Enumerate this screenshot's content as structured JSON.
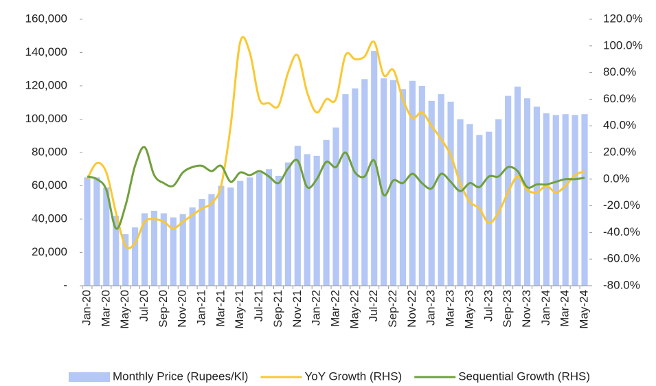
{
  "chart_data": {
    "type": "bar-line",
    "categories": [
      "Jan-20",
      null,
      "Mar-20",
      null,
      "May-20",
      null,
      "Jul-20",
      null,
      "Sep-20",
      null,
      "Nov-20",
      null,
      "Jan-21",
      null,
      "Mar-21",
      null,
      "May-21",
      null,
      "Jul-21",
      null,
      "Sep-21",
      null,
      "Nov-21",
      null,
      "Jan-22",
      null,
      "Mar-22",
      null,
      "May-22",
      null,
      "Jul-22",
      null,
      "Sep-22",
      null,
      "Nov-22",
      null,
      "Jan-23",
      null,
      "Mar-23",
      null,
      "May-23",
      null,
      "Jul-23",
      null,
      "Sep-23",
      null,
      "Nov-23",
      null,
      "Jan-24",
      null,
      "Mar-24",
      null,
      "May-24"
    ],
    "series": [
      {
        "name": "Monthly Price (Rupees/Kl)",
        "color": "#b4c7f5",
        "kind": "bar",
        "axis": "y",
        "values": [
          65000,
          65000,
          59000,
          42000,
          31000,
          35000,
          43500,
          45000,
          43500,
          41000,
          43000,
          47000,
          52000,
          55000,
          60000,
          59000,
          63000,
          65000,
          68000,
          70000,
          66000,
          74000,
          84000,
          79000,
          78000,
          87500,
          95000,
          115000,
          118500,
          124000,
          141000,
          124500,
          123500,
          118000,
          123000,
          120000,
          111000,
          115000,
          110500,
          100000,
          97000,
          90500,
          92500,
          100000,
          114000,
          119500,
          112500,
          107500,
          103500,
          102500,
          103000,
          102500,
          103000
        ]
      },
      {
        "name": "YoY Growth (RHS)",
        "color": "#fac832",
        "kind": "line",
        "axis": "y2",
        "values": [
          0,
          12,
          5,
          -25,
          -50,
          -48,
          -32,
          -30,
          -32,
          -37,
          -32,
          -27,
          -22,
          -18,
          -5,
          40,
          103,
          95,
          60,
          57,
          55,
          80,
          93,
          65,
          50,
          60,
          60,
          93,
          90,
          92,
          103,
          78,
          82,
          60,
          46,
          50,
          40,
          30,
          18,
          -3,
          -17,
          -22,
          -33,
          -25,
          -10,
          2,
          -8,
          -10,
          -5,
          -10,
          -5,
          3,
          6
        ]
      },
      {
        "name": "Sequential Growth (RHS)",
        "color": "#70a03c",
        "kind": "line",
        "axis": "y2",
        "values": [
          2,
          0,
          -8,
          -37,
          -20,
          10,
          24,
          3,
          -3,
          -5,
          5,
          9,
          10,
          6,
          10,
          -2,
          5,
          3,
          6,
          2,
          -3,
          8,
          14,
          -6,
          0,
          13,
          9,
          20,
          5,
          2,
          14,
          -12,
          -1,
          -3,
          4,
          -3,
          -7,
          4,
          -2,
          -9,
          -3,
          -6,
          2,
          2,
          9,
          6,
          -6,
          -4,
          -4,
          -2,
          0,
          0,
          1
        ]
      }
    ],
    "ylim": [
      0,
      160000
    ],
    "yticks": [
      {
        "value": 0,
        "label": "-"
      },
      {
        "value": 20000,
        "label": "20,000"
      },
      {
        "value": 40000,
        "label": "40,000"
      },
      {
        "value": 60000,
        "label": "60,000"
      },
      {
        "value": 80000,
        "label": "80,000"
      },
      {
        "value": 100000,
        "label": "100,000"
      },
      {
        "value": 120000,
        "label": "120,000"
      },
      {
        "value": 140000,
        "label": "140,000"
      },
      {
        "value": 160000,
        "label": "160,000"
      }
    ],
    "y2lim": [
      -80,
      120
    ],
    "y2ticks": [
      {
        "value": -80,
        "label": "-80.0%"
      },
      {
        "value": -60,
        "label": "-60.0%"
      },
      {
        "value": -40,
        "label": "-40.0%"
      },
      {
        "value": -20,
        "label": "-20.0%"
      },
      {
        "value": 0,
        "label": "0.0%"
      },
      {
        "value": 20,
        "label": "20.0%"
      },
      {
        "value": 40,
        "label": "40.0%"
      },
      {
        "value": 60,
        "label": "60.0%"
      },
      {
        "value": 80,
        "label": "80.0%"
      },
      {
        "value": 100,
        "label": "100.0%"
      },
      {
        "value": 120,
        "label": "120.0%"
      }
    ],
    "grid": false,
    "legend": "bottom"
  }
}
